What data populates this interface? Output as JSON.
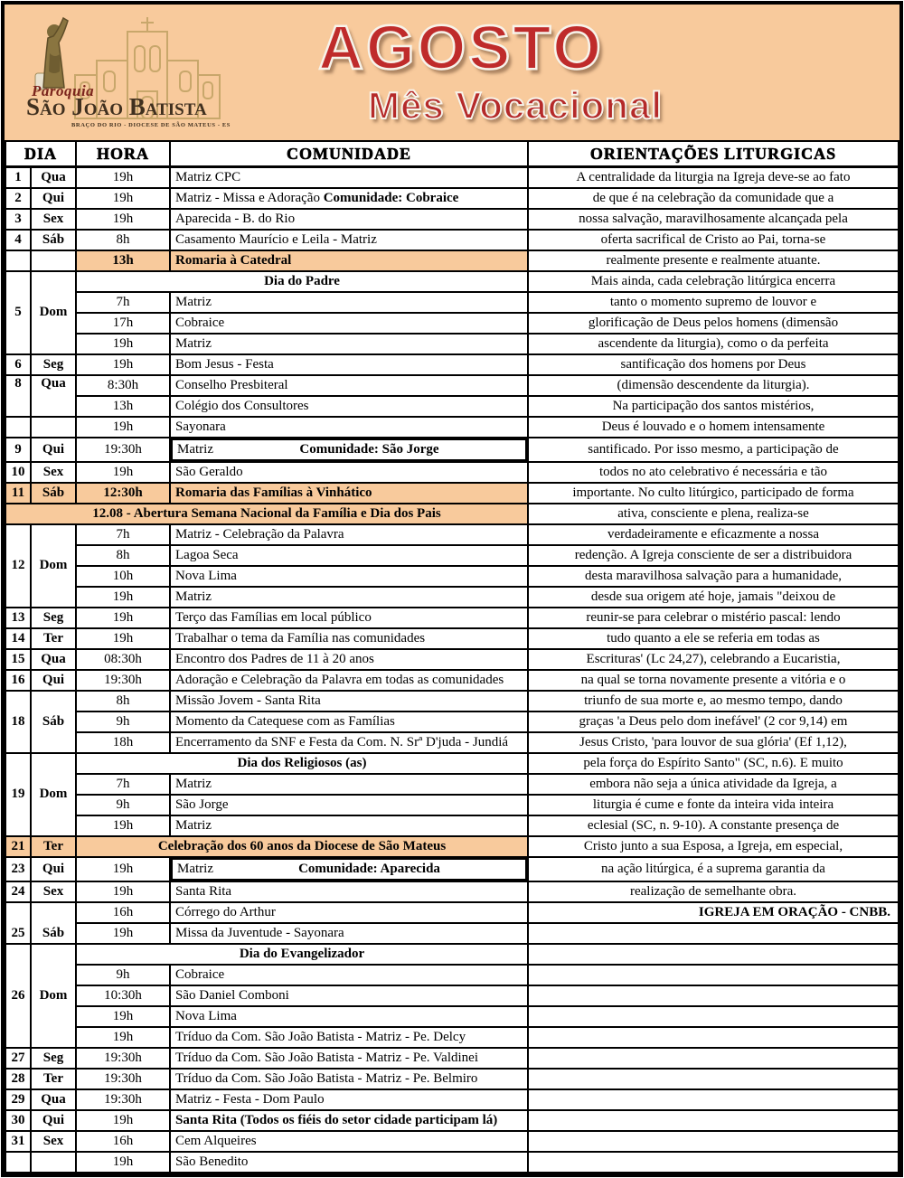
{
  "colors": {
    "banner_peach": "#f8ca9c",
    "highlight_peach": "#f8ca9c",
    "title_red": "#bf2b2b",
    "logo_brown": "#40301f",
    "logo_script_red": "#7b241c",
    "border_black": "#000000"
  },
  "header": {
    "title": "AGOSTO",
    "subtitle": "Mês Vocacional",
    "logo": {
      "script": "Paroquia",
      "name": "São João Batista",
      "sub": "Braço Do Rio - Diocese De São Mateus - ES",
      "icons": [
        "statue-of-saint-john-icon",
        "church-facade-icon"
      ]
    }
  },
  "table": {
    "columns": {
      "dia": "DIA",
      "hora": "HORA",
      "comunidade": "COMUNIDADE",
      "orientacoes": "ORIENTAÇÕES LITURGICAS"
    },
    "rows": [
      {
        "num": "1",
        "day": "Qua",
        "hora": "19h",
        "comunidade": "Matriz CPC",
        "orientacao": "A centralidade da liturgia na Igreja deve-se ao fato"
      },
      {
        "num": "2",
        "day": "Qui",
        "hora": "19h",
        "comunidade": "Matriz - Missa e Adoração ",
        "comunidade_bold": "Comunidade: Cobraice",
        "bold_layout": "inline",
        "orientacao": "de que é na celebração da comunidade que a"
      },
      {
        "num": "3",
        "day": "Sex",
        "hora": "19h",
        "comunidade": "Aparecida - B. do Rio",
        "orientacao": "nossa salvação, maravilhosamente alcançada pela"
      },
      {
        "num": "4",
        "day": "Sáb",
        "hora": "8h",
        "comunidade": "Casamento Maurício e Leila - Matriz",
        "orientacao": "oferta sacrifical de Cristo ao Pai, torna-se"
      },
      {
        "num": "",
        "day": "",
        "hora": "13h",
        "hora_bold": true,
        "comunidade": "Romaria à Catedral",
        "com_bold": true,
        "highlight_hc": true,
        "orientacao": "realmente presente e realmente atuante."
      },
      {
        "num": "5",
        "day": "Dom",
        "day_rowspan": 4,
        "banner": "Dia do Padre",
        "banner_cols": 2,
        "orientacao": "Mais ainda, cada celebração litúrgica encerra"
      },
      {
        "hora": "7h",
        "comunidade": "Matriz",
        "orientacao": "tanto o momento supremo de louvor e"
      },
      {
        "hora": "17h",
        "comunidade": "Cobraice",
        "orientacao": "glorificação de Deus pelos homens (dimensão"
      },
      {
        "hora": "19h",
        "comunidade": "Matriz",
        "orientacao": "ascendente da liturgia), como o da perfeita"
      },
      {
        "num": "6",
        "day": "Seg",
        "hora": "19h",
        "comunidade": "Bom Jesus - Festa",
        "orientacao": "santificação dos homens por Deus"
      },
      {
        "num": "8",
        "day": "Qua",
        "day_rowspan": 2,
        "day_valign": "top",
        "hora": "8:30h",
        "comunidade": "Conselho Presbiteral",
        "orientacao": "(dimensão descendente da liturgia)."
      },
      {
        "hora": "13h",
        "comunidade": "Colégio dos Consultores",
        "orientacao": "Na participação dos santos mistérios,"
      },
      {
        "num": "",
        "day": "",
        "hora": "19h",
        "comunidade": "Sayonara",
        "orientacao": "Deus é louvado e o homem intensamente"
      },
      {
        "num": "9",
        "day": "Qui",
        "hora": "19:30h",
        "comunidade": "Matriz",
        "comunidade_bold": "Comunidade: São Jorge",
        "bold_layout": "center",
        "orientacao": "santificado. Por isso mesmo, a participação de"
      },
      {
        "num": "10",
        "day": "Sex",
        "hora": "19h",
        "comunidade": "São Geraldo",
        "orientacao": "todos no ato celebrativo é necessária e tão"
      },
      {
        "num": "11",
        "day": "Sáb",
        "hora": "12:30h",
        "hora_bold": true,
        "comunidade": "Romaria das Famílias à Vinhático",
        "com_bold": true,
        "highlight": true,
        "orientacao": "importante. No culto litúrgico, participado de forma"
      },
      {
        "banner": "12.08 - Abertura Semana Nacional da Família  e Dia dos Pais",
        "banner_cols": 4,
        "highlight": true,
        "orientacao": "ativa, consciente e plena, realiza-se"
      },
      {
        "num": "12",
        "day": "Dom",
        "day_rowspan": 4,
        "hora": "7h",
        "comunidade": "Matriz - Celebração da Palavra",
        "orientacao": "verdadeiramente e eficazmente a nossa"
      },
      {
        "hora": "8h",
        "comunidade": "Lagoa Seca",
        "orientacao": "redenção. A Igreja consciente de ser a distribuidora"
      },
      {
        "hora": "10h",
        "comunidade": "Nova Lima",
        "orientacao": "desta maravilhosa salvação para a humanidade,"
      },
      {
        "hora": "19h",
        "comunidade": "Matriz",
        "orientacao": "desde sua origem até hoje, jamais \"deixou de"
      },
      {
        "num": "13",
        "day": "Seg",
        "hora": "19h",
        "comunidade": "Terço das Famílias em local público",
        "orientacao": "reunir-se para celebrar o mistério pascal: lendo"
      },
      {
        "num": "14",
        "day": "Ter",
        "hora": "19h",
        "comunidade": "Trabalhar o tema da Família nas comunidades",
        "orientacao": "tudo quanto a ele se referia em todas as"
      },
      {
        "num": "15",
        "day": "Qua",
        "hora": "08:30h",
        "comunidade": "Encontro dos Padres de 11 à 20 anos",
        "orientacao": "Escrituras' (Lc 24,27), celebrando a Eucaristia,"
      },
      {
        "num": "16",
        "day": "Qui",
        "hora": "19:30h",
        "comunidade": "Adoração e Celebração da Palavra em todas as comunidades",
        "orientacao": "na qual se torna novamente presente a vitória e o"
      },
      {
        "num": "18",
        "day": "Sáb",
        "day_rowspan": 3,
        "hora": "8h",
        "comunidade": "Missão Jovem - Santa Rita",
        "orientacao": "triunfo de sua morte e, ao mesmo tempo, dando"
      },
      {
        "hora": "9h",
        "comunidade": "Momento da Catequese com as Famílias",
        "orientacao": "graças 'a Deus pelo dom inefável' (2 cor 9,14) em"
      },
      {
        "hora": "18h",
        "comunidade": "Encerramento da SNF e Festa da Com. N. Srª D'juda - Jundiá",
        "orientacao": "Jesus Cristo, 'para louvor de sua glória' (Ef 1,12),"
      },
      {
        "num": "19",
        "day": "Dom",
        "day_rowspan": 4,
        "banner": "Dia dos Religiosos (as)",
        "banner_cols": 2,
        "orientacao": "pela força do Espírito Santo\" (SC, n.6). E muito"
      },
      {
        "hora": "7h",
        "comunidade": "Matriz",
        "orientacao": "embora não seja a única atividade da Igreja, a"
      },
      {
        "hora": "9h",
        "comunidade": "São Jorge",
        "orientacao": "liturgia é cume e fonte da inteira vida inteira"
      },
      {
        "hora": "19h",
        "comunidade": "Matriz",
        "orientacao": "eclesial (SC, n. 9-10). A constante presença de"
      },
      {
        "num": "21",
        "day": "Ter",
        "banner": "Celebração dos 60 anos da Diocese de São Mateus",
        "banner_cols": 2,
        "highlight": true,
        "orientacao": "Cristo junto a sua Esposa, a Igreja, em especial,"
      },
      {
        "num": "23",
        "day": "Qui",
        "hora": "19h",
        "comunidade": "Matriz",
        "comunidade_bold": "Comunidade: Aparecida",
        "bold_layout": "center",
        "orientacao": "na ação litúrgica, é a suprema garantia da"
      },
      {
        "num": "24",
        "day": "Sex",
        "hora": "19h",
        "comunidade": "Santa Rita",
        "orientacao": "realização de semelhante obra."
      },
      {
        "num": "25",
        "day": "Sáb",
        "day_rowspan": 2,
        "day_valign": "bottom",
        "hora": "16h",
        "comunidade": "Córrego do Arthur",
        "orientacao": "IGREJA EM ORAÇÃO - CNBB.",
        "orient_bold": true,
        "orient_right": true
      },
      {
        "hora": "19h",
        "comunidade": "Missa da Juventude - Sayonara",
        "orientacao": ""
      },
      {
        "num": "26",
        "day": "Dom",
        "day_rowspan": 5,
        "banner": "Dia do Evangelizador",
        "banner_cols": 2,
        "orientacao": ""
      },
      {
        "hora": "9h",
        "comunidade": "Cobraice",
        "orientacao": ""
      },
      {
        "hora": "10:30h",
        "comunidade": "São Daniel Comboni",
        "orientacao": ""
      },
      {
        "hora": "19h",
        "comunidade": "Nova Lima",
        "orientacao": ""
      },
      {
        "hora": "19h",
        "comunidade": "Tríduo da Com. São João Batista - Matriz - Pe. Delcy",
        "orientacao": ""
      },
      {
        "num": "27",
        "day": "Seg",
        "hora": "19:30h",
        "comunidade": "Tríduo da Com. São João Batista - Matriz - Pe. Valdinei",
        "orientacao": ""
      },
      {
        "num": "28",
        "day": "Ter",
        "hora": "19:30h",
        "comunidade": "Tríduo da Com. São João Batista - Matriz - Pe. Belmiro",
        "orientacao": ""
      },
      {
        "num": "29",
        "day": "Qua",
        "hora": "19:30h",
        "comunidade": "Matriz - Festa - Dom Paulo",
        "orientacao": ""
      },
      {
        "num": "30",
        "day": "Qui",
        "hora": "19h",
        "comunidade": "Santa Rita (Todos os fiéis do setor cidade participam lá)",
        "com_bold": true,
        "orientacao": ""
      },
      {
        "num": "31",
        "day": "Sex",
        "hora": "16h",
        "comunidade": "Cem Alqueires",
        "orientacao": ""
      },
      {
        "num": "",
        "day": "",
        "hora": "19h",
        "comunidade": "São Benedito",
        "orientacao": ""
      }
    ]
  }
}
